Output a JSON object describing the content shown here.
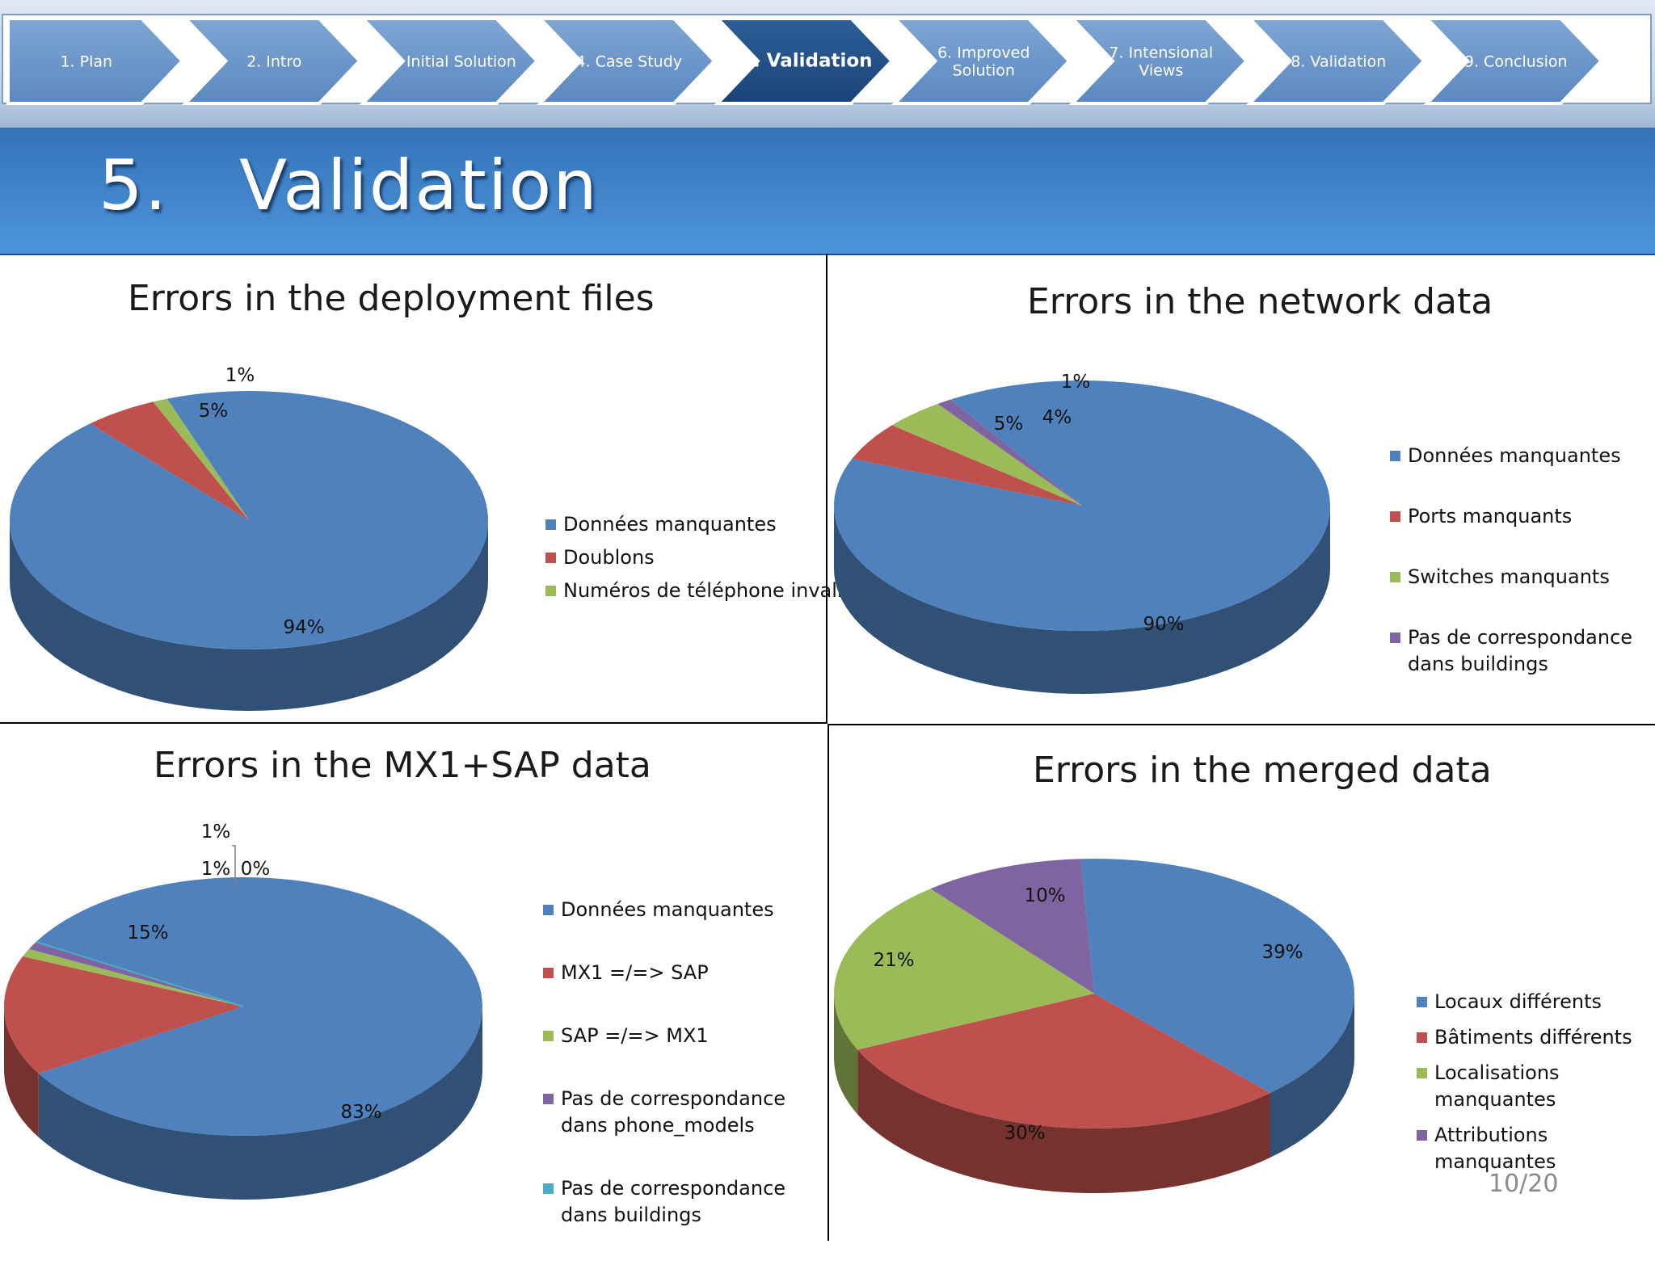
{
  "nav": {
    "steps": [
      {
        "label": "1. Plan",
        "active": false
      },
      {
        "label": "2. Intro",
        "active": false
      },
      {
        "label": "3. Initial Solution",
        "active": false
      },
      {
        "label": "4. Case Study",
        "active": false
      },
      {
        "label": "5. Validation",
        "active": true
      },
      {
        "label": "6. Improved\nSolution",
        "active": false
      },
      {
        "label": "7. Intensional\nViews",
        "active": false
      },
      {
        "label": "8. Validation",
        "active": false
      },
      {
        "label": "9. Conclusion",
        "active": false
      }
    ]
  },
  "slide": {
    "title": "5.   Validation",
    "page_number": "10/20"
  },
  "colors": {
    "blue": "#4f81bd",
    "red": "#c0504d",
    "green": "#9bbb59",
    "purple": "#8064a2",
    "teal": "#4bacc6"
  },
  "chart_data": [
    {
      "type": "pie",
      "title": "Errors in the deployment files",
      "labels": [
        "Données manquantes",
        "Doublons",
        "Numéros de téléphone invalides"
      ],
      "values": [
        94,
        5,
        1
      ],
      "value_labels": [
        "94%",
        "5%",
        "1%"
      ],
      "colors": [
        "#4f81bd",
        "#c0504d",
        "#9bbb59"
      ],
      "legend": "right"
    },
    {
      "type": "pie",
      "title": "Errors in the network data",
      "labels": [
        "Données manquantes",
        "Ports manquants",
        "Switches manquants",
        "Pas de correspondance dans buildings"
      ],
      "values": [
        90,
        5,
        4,
        1
      ],
      "value_labels": [
        "90%",
        "5%",
        "4%",
        "1%"
      ],
      "colors": [
        "#4f81bd",
        "#c0504d",
        "#9bbb59",
        "#8064a2"
      ],
      "legend": "right"
    },
    {
      "type": "pie",
      "title": "Errors in the MX1+SAP data",
      "labels": [
        "Données manquantes",
        "MX1 =/=> SAP",
        "SAP =/=> MX1",
        "Pas de correspondance dans phone_models",
        "Pas de correspondance dans buildings"
      ],
      "values": [
        83,
        15,
        1,
        1,
        0
      ],
      "value_labels": [
        "83%",
        "15%",
        "1%",
        "1%",
        "0%"
      ],
      "colors": [
        "#4f81bd",
        "#c0504d",
        "#9bbb59",
        "#8064a2",
        "#4bacc6"
      ],
      "legend": "right"
    },
    {
      "type": "pie",
      "title": "Errors in the merged data",
      "labels": [
        "Locaux différents",
        "Bâtiments différents",
        "Localisations manquantes",
        "Attributions manquantes"
      ],
      "values": [
        39,
        30,
        21,
        10
      ],
      "value_labels": [
        "39%",
        "30%",
        "21%",
        "10%"
      ],
      "colors": [
        "#4f81bd",
        "#c0504d",
        "#9bbb59",
        "#8064a2"
      ],
      "legend": "right"
    }
  ]
}
